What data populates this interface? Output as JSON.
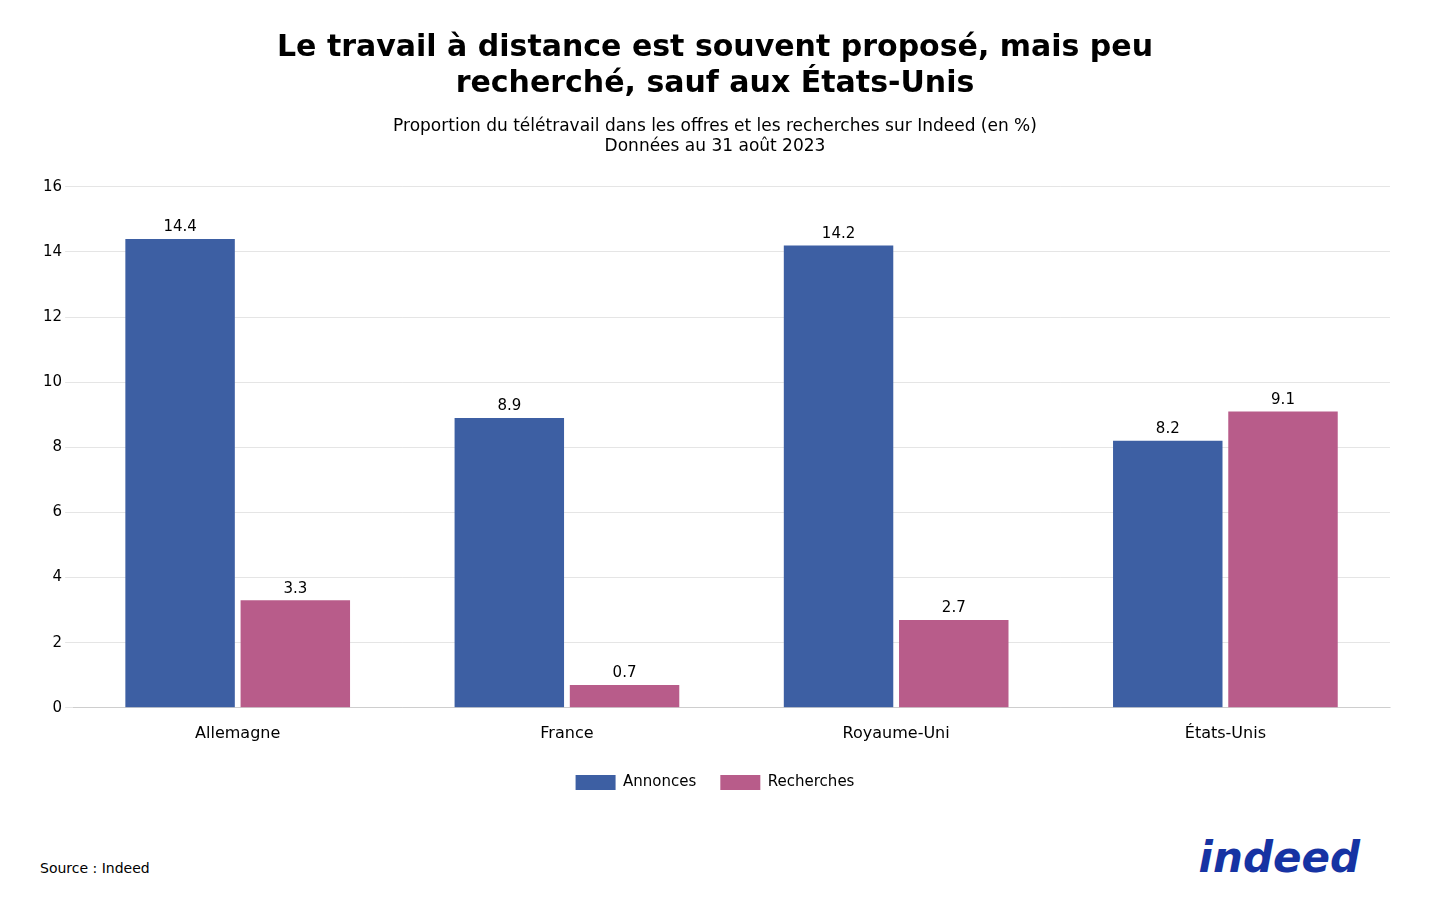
{
  "chart_data": {
    "type": "bar",
    "title": "Le travail à distance est souvent proposé, mais peu\nrecherché, sauf aux États-Unis",
    "subtitle": "Proportion du télétravail dans les offres et les recherches sur Indeed (en %)\nDonnées au 31 août 2023",
    "categories": [
      "Allemagne",
      "France",
      "Royaume-Uni",
      "États-Unis"
    ],
    "series": [
      {
        "name": "Annonces",
        "color": "#3D5FA3",
        "values": [
          14.4,
          8.9,
          14.2,
          8.2
        ]
      },
      {
        "name": "Recherches",
        "color": "#B85C8A",
        "values": [
          3.3,
          0.7,
          2.7,
          9.1
        ]
      }
    ],
    "ylim": [
      0,
      16
    ],
    "yticks": [
      0,
      2,
      4,
      6,
      8,
      10,
      12,
      14,
      16
    ],
    "grid": true,
    "legend": "bottom",
    "data_labels": true,
    "annotations": [
      {
        "text": "Source : Indeed"
      },
      {
        "text": "indeed",
        "color": "#1633A3"
      }
    ]
  }
}
